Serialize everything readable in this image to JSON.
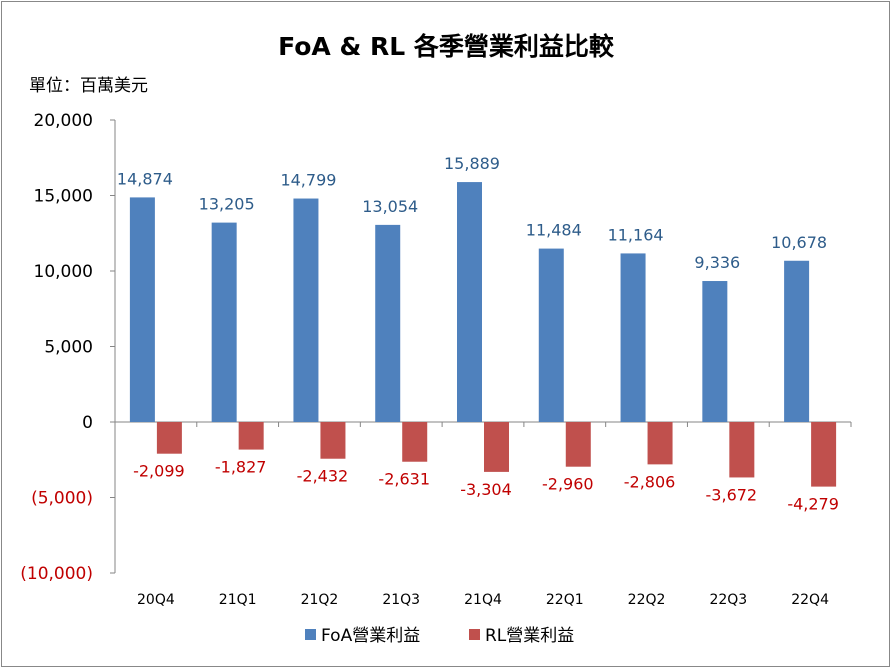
{
  "chart_data": {
    "type": "bar",
    "title": "FoA & RL 各季營業利益比較",
    "unit_label": "單位：百萬美元",
    "categories": [
      "20Q4",
      "21Q1",
      "21Q2",
      "21Q3",
      "21Q4",
      "22Q1",
      "22Q2",
      "22Q3",
      "22Q4"
    ],
    "series": [
      {
        "name": "FoA營業利益",
        "color": "#4F81BD",
        "label_color": "#2E5C8A",
        "values": [
          14874,
          13205,
          14799,
          13054,
          15889,
          11484,
          11164,
          9336,
          10678
        ],
        "labels": [
          "14,874",
          "13,205",
          "14,799",
          "13,054",
          "15,889",
          "11,484",
          "11,164",
          "9,336",
          "10,678"
        ]
      },
      {
        "name": "RL營業利益",
        "color": "#C0504D",
        "label_color": "#C00000",
        "values": [
          -2099,
          -1827,
          -2432,
          -2631,
          -3304,
          -2960,
          -2806,
          -3672,
          -4279
        ],
        "labels": [
          "-2,099",
          "-1,827",
          "-2,432",
          "-2,631",
          "-3,304",
          "-2,960",
          "-2,806",
          "-3,672",
          "-4,279"
        ]
      }
    ],
    "ylim": [
      -10000,
      20000
    ],
    "ytick_values": [
      20000,
      15000,
      10000,
      5000,
      0,
      -5000,
      -10000
    ],
    "ytick_labels": [
      "20,000",
      "15,000",
      "10,000",
      "5,000",
      "0",
      "(5,000)",
      "(10,000)"
    ],
    "ytick_colors": [
      "#000000",
      "#000000",
      "#000000",
      "#000000",
      "#000000",
      "#C00000",
      "#C00000"
    ],
    "legend_position": "bottom",
    "grid": false
  }
}
